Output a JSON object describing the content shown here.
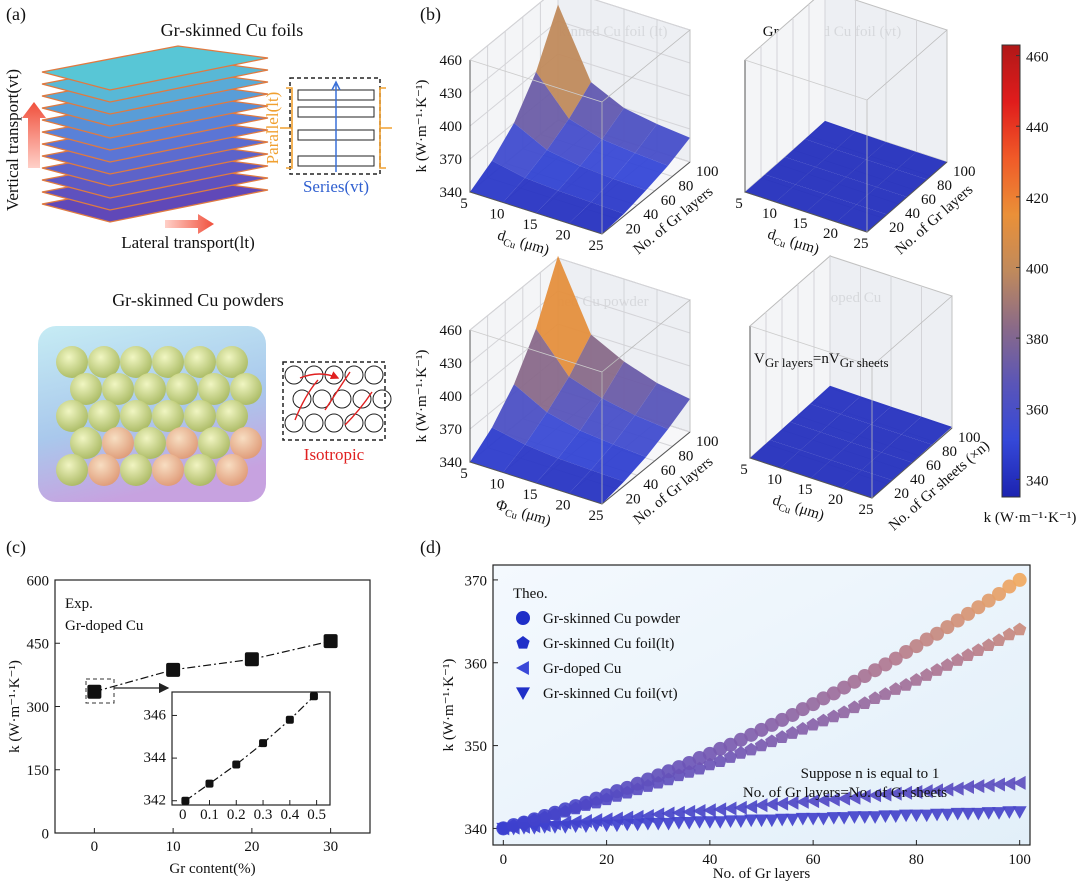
{
  "panel_labels": [
    "(a)",
    "(b)",
    "(c)",
    "(d)"
  ],
  "panel_a": {
    "foils_title": "Gr-skinned Cu foils",
    "vertical": "Vertical transport(vt)",
    "lateral": "Lateral transport(lt)",
    "parallel": "Parallel(lt)",
    "series": "Series(vt)",
    "powders_title": "Gr-skinned Cu powders",
    "isotropic": "Isotropic"
  },
  "chart_data": [
    {
      "type": "surface3d",
      "title": "Gr-skinned Cu foil (lt)",
      "zlabel": "k (W·m⁻¹·K⁻¹)",
      "xlabel": [
        "d",
        "Cu",
        " (μm)"
      ],
      "ylabel": "No. of Gr layers",
      "xlim": [
        5,
        25
      ],
      "xticks": [
        5,
        10,
        15,
        20,
        25
      ],
      "ylim": [
        0,
        100
      ],
      "yticks": [
        20,
        40,
        60,
        80,
        100
      ],
      "zlim": [
        340,
        460
      ],
      "zticks": [
        340,
        370,
        400,
        430,
        460
      ],
      "x": [
        5,
        10,
        15,
        20,
        25
      ],
      "y": [
        0,
        25,
        50,
        75,
        100
      ],
      "values": [
        [
          340,
          352,
          370,
          400,
          445
        ],
        [
          340,
          346,
          355,
          367,
          384
        ],
        [
          340,
          344,
          350,
          358,
          370
        ],
        [
          340,
          343,
          348,
          355,
          365
        ],
        [
          340,
          342,
          347,
          353,
          362
        ]
      ]
    },
    {
      "type": "surface3d",
      "title": "Gr-skinned Cu foil (vt)",
      "xlabel": [
        "d",
        "Cu",
        " (μm)"
      ],
      "ylabel": "No. of Gr layers",
      "xlim": [
        5,
        25
      ],
      "xticks": [
        5,
        10,
        15,
        20,
        25
      ],
      "ylim": [
        0,
        100
      ],
      "yticks": [
        20,
        40,
        60,
        80,
        100
      ],
      "zlim": [
        340,
        460
      ],
      "x": [
        5,
        10,
        15,
        20,
        25
      ],
      "y": [
        0,
        25,
        50,
        75,
        100
      ],
      "values": [
        [
          340,
          340,
          340,
          340.5,
          341
        ],
        [
          340,
          340,
          340,
          340,
          340.5
        ],
        [
          340,
          340,
          340,
          340,
          340
        ],
        [
          340,
          340,
          340,
          340,
          340
        ],
        [
          340,
          340,
          340,
          340,
          340
        ]
      ]
    },
    {
      "type": "surface3d",
      "title": "Gr-skinned Cu powder",
      "zlabel": "k (W·m⁻¹·K⁻¹)",
      "xlabel": [
        "Φ",
        "Cu",
        " (μm)"
      ],
      "ylabel": "No. of Gr layers",
      "xlim": [
        5,
        25
      ],
      "xticks": [
        5,
        10,
        15,
        20,
        25
      ],
      "ylim": [
        0,
        100
      ],
      "yticks": [
        20,
        40,
        60,
        80,
        100
      ],
      "zlim": [
        340,
        460
      ],
      "zticks": [
        340,
        370,
        400,
        430,
        460
      ],
      "x": [
        5,
        10,
        15,
        20,
        25
      ],
      "y": [
        0,
        25,
        50,
        75,
        100
      ],
      "values": [
        [
          340,
          355,
          378,
          412,
          462
        ],
        [
          340,
          349,
          362,
          378,
          400
        ],
        [
          340,
          346,
          355,
          368,
          385
        ],
        [
          340,
          345,
          352,
          362,
          375
        ],
        [
          340,
          344,
          350,
          359,
          370
        ]
      ]
    },
    {
      "type": "surface3d",
      "title": "Gr-doped Cu",
      "xlabel": [
        "d",
        "Cu",
        " (μm)"
      ],
      "ylabel": "No. of Gr sheets (×n)",
      "annotation": [
        "V",
        "Gr layers",
        "=nV",
        "Gr sheets"
      ],
      "xlim": [
        5,
        25
      ],
      "xticks": [
        5,
        10,
        15,
        20,
        25
      ],
      "ylim": [
        0,
        100
      ],
      "yticks": [
        20,
        40,
        60,
        80,
        100
      ],
      "zlim": [
        340,
        460
      ],
      "x": [
        5,
        10,
        15,
        20,
        25
      ],
      "y": [
        0,
        25,
        50,
        75,
        100
      ],
      "values": [
        [
          340,
          340.5,
          341,
          341.5,
          342
        ],
        [
          340,
          340.4,
          340.8,
          341.2,
          341.6
        ],
        [
          340,
          340.3,
          340.6,
          341,
          341.3
        ],
        [
          340,
          340.3,
          340.6,
          340.9,
          341.2
        ],
        [
          340,
          340.3,
          340.5,
          340.8,
          341
        ]
      ]
    },
    {
      "type": "colorbar",
      "label": "k (W·m⁻¹·K⁻¹)",
      "lim": [
        335,
        463
      ],
      "ticks": [
        340,
        360,
        380,
        400,
        420,
        440,
        460
      ],
      "colors": [
        "#1c23b0",
        "#3548d8",
        "#5a55b8",
        "#8a6a88",
        "#c08a5c",
        "#ea9038",
        "#f05a28",
        "#e01c1c",
        "#b01818"
      ]
    },
    {
      "type": "line",
      "xlabel": "Gr content(%)",
      "ylabel": "k (W·m⁻¹·K⁻¹)",
      "annotations": [
        "Exp.",
        "Gr-doped Cu"
      ],
      "x": [
        0,
        10,
        20,
        30
      ],
      "values": [
        335,
        387,
        412,
        455
      ],
      "color": "#111111",
      "xlim": [
        -5,
        35
      ],
      "xticks": [
        0,
        10,
        20,
        30
      ],
      "ylim": [
        0,
        600
      ],
      "yticks": [
        0,
        150,
        300,
        450,
        600
      ]
    },
    {
      "type": "line",
      "x": [
        0.01,
        0.1,
        0.2,
        0.3,
        0.4,
        0.49
      ],
      "values": [
        342.0,
        342.8,
        343.7,
        344.7,
        345.8,
        346.9
      ],
      "color": "#111111",
      "xlim": [
        -0.04,
        0.55
      ],
      "xticks": [
        0,
        0.1,
        0.2,
        0.3,
        0.4,
        0.5
      ],
      "ylim": [
        341.8,
        347.1
      ],
      "yticks": [
        342,
        344,
        346
      ]
    },
    {
      "type": "scatter",
      "xlabel": "No. of Gr layers",
      "ylabel": "k (W·m⁻¹·K⁻¹)",
      "legend_title": "Theo.",
      "annotations": [
        "Suppose n is equal to 1",
        "No. of Gr layers=No. of Gr sheets"
      ],
      "xlim": [
        -2,
        102
      ],
      "xticks": [
        0,
        20,
        40,
        60,
        80,
        100
      ],
      "ylim": [
        338,
        371.8
      ],
      "yticks": [
        340,
        350,
        360,
        370
      ],
      "marker_colormap": [
        "#3b3fcf",
        "#7a5bb0",
        "#b07890",
        "#f0a860"
      ],
      "x": [
        0,
        2,
        4,
        6,
        8,
        10,
        12,
        14,
        16,
        18,
        20,
        22,
        24,
        26,
        28,
        30,
        32,
        34,
        36,
        38,
        40,
        42,
        44,
        46,
        48,
        50,
        52,
        54,
        56,
        58,
        60,
        62,
        64,
        66,
        68,
        70,
        72,
        74,
        76,
        78,
        80,
        82,
        84,
        86,
        88,
        90,
        92,
        94,
        96,
        98,
        100
      ],
      "series": [
        {
          "name": "Gr-skinned Cu powder",
          "color": "#1f2fc8",
          "marker": "circle",
          "values": [
            340.0,
            340.4,
            340.7,
            341.1,
            341.5,
            341.9,
            342.3,
            342.7,
            343.1,
            343.6,
            344.0,
            344.5,
            344.9,
            345.4,
            345.9,
            346.4,
            346.9,
            347.4,
            347.9,
            348.5,
            349.0,
            349.6,
            350.1,
            350.7,
            351.3,
            351.9,
            352.5,
            353.1,
            353.7,
            354.4,
            355.0,
            355.7,
            356.3,
            357.0,
            357.7,
            358.4,
            359.1,
            359.8,
            360.5,
            361.3,
            362.0,
            362.8,
            363.5,
            364.3,
            365.1,
            365.9,
            366.7,
            367.5,
            368.3,
            369.2,
            370.0
          ]
        },
        {
          "name": "Gr-skinned Cu foil(lt)",
          "color": "#1f2fc8",
          "marker": "pentagon",
          "values": [
            340.0,
            340.3,
            340.7,
            341.0,
            341.3,
            341.7,
            342.0,
            342.4,
            342.8,
            343.1,
            343.5,
            343.9,
            344.3,
            344.7,
            345.1,
            345.5,
            345.9,
            346.4,
            346.8,
            347.2,
            347.7,
            348.1,
            348.6,
            349.1,
            349.5,
            350.0,
            350.5,
            351.0,
            351.5,
            352.0,
            352.5,
            353.0,
            353.5,
            354.0,
            354.6,
            355.1,
            355.7,
            356.2,
            356.8,
            357.3,
            357.9,
            358.5,
            359.1,
            359.7,
            360.3,
            360.9,
            361.5,
            362.1,
            362.7,
            363.4,
            364.0
          ]
        },
        {
          "name": "Gr-doped Cu",
          "color": "#3a48d8",
          "marker": "triangle-left",
          "values": [
            340.0,
            340.1,
            340.2,
            340.3,
            340.4,
            340.6,
            340.7,
            340.8,
            340.9,
            341.0,
            341.1,
            341.2,
            341.3,
            341.4,
            341.5,
            341.7,
            341.8,
            341.9,
            342.0,
            342.1,
            342.2,
            342.3,
            342.4,
            342.5,
            342.6,
            342.8,
            342.9,
            343.0,
            343.1,
            343.2,
            343.3,
            343.4,
            343.5,
            343.6,
            343.7,
            343.9,
            344.0,
            344.1,
            344.2,
            344.3,
            344.4,
            344.5,
            344.6,
            344.7,
            344.8,
            345.0,
            345.1,
            345.2,
            345.3,
            345.4,
            345.5
          ]
        },
        {
          "name": "Gr-skinned Cu foil(vt)",
          "color": "#1f2fc8",
          "marker": "triangle-down",
          "values": [
            340.0,
            340.0,
            340.1,
            340.1,
            340.2,
            340.2,
            340.2,
            340.3,
            340.3,
            340.4,
            340.4,
            340.4,
            340.5,
            340.5,
            340.6,
            340.6,
            340.6,
            340.7,
            340.7,
            340.8,
            340.8,
            340.8,
            340.9,
            340.9,
            341.0,
            341.0,
            341.0,
            341.1,
            341.1,
            341.2,
            341.2,
            341.2,
            341.3,
            341.3,
            341.4,
            341.4,
            341.4,
            341.5,
            341.5,
            341.6,
            341.6,
            341.6,
            341.7,
            341.7,
            341.8,
            341.8,
            341.8,
            341.9,
            341.9,
            342.0,
            342.0
          ]
        }
      ]
    }
  ]
}
